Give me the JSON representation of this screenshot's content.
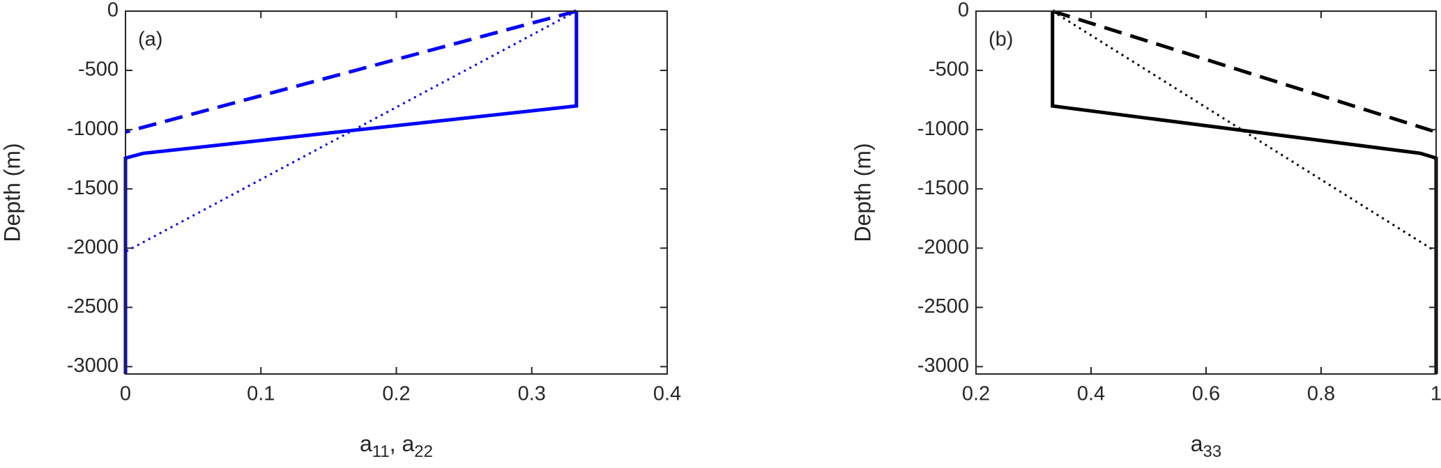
{
  "chart_data": [
    {
      "type": "line",
      "panel_label": "(a)",
      "ylabel": "Depth (m)",
      "xlabel": [
        {
          "text": "a"
        },
        {
          "text": "11",
          "sub": true
        },
        {
          "text": ", a"
        },
        {
          "text": "22",
          "sub": true
        }
      ],
      "xlim": [
        0,
        0.4
      ],
      "xticks": [
        0,
        0.1,
        0.2,
        0.3,
        0.4
      ],
      "ylim": [
        -3062,
        0
      ],
      "yticks": [
        -3000,
        -2500,
        -2000,
        -1500,
        -1000,
        -500,
        0
      ],
      "series": [
        {
          "color": "#0000ff",
          "linestyle": "solid",
          "x": [
            0.333,
            0.333,
            0.013,
            0,
            0
          ],
          "values": [
            0,
            -800,
            -1200,
            -1240,
            -3062
          ]
        },
        {
          "color": "#0000ff",
          "linestyle": "dashed",
          "x": [
            0.333,
            0
          ],
          "values": [
            0,
            -1020
          ]
        },
        {
          "color": "#0000ff",
          "linestyle": "dotted",
          "x": [
            0.333,
            0
          ],
          "values": [
            0,
            -2030
          ]
        }
      ]
    },
    {
      "type": "line",
      "panel_label": "(b)",
      "ylabel": "Depth (m)",
      "xlabel": [
        {
          "text": "a"
        },
        {
          "text": "33",
          "sub": true
        }
      ],
      "xlim": [
        0.2,
        1
      ],
      "xticks": [
        0.2,
        0.4,
        0.6,
        0.8,
        1
      ],
      "ylim": [
        -3062,
        0
      ],
      "yticks": [
        -3000,
        -2500,
        -2000,
        -1500,
        -1000,
        -500,
        0
      ],
      "series": [
        {
          "color": "#000000",
          "linestyle": "solid",
          "x": [
            0.333,
            0.333,
            0.973,
            1,
            1
          ],
          "values": [
            0,
            -800,
            -1200,
            -1240,
            -3062
          ]
        },
        {
          "color": "#000000",
          "linestyle": "dashed",
          "x": [
            0.333,
            1
          ],
          "values": [
            0,
            -1020
          ]
        },
        {
          "color": "#000000",
          "linestyle": "dotted",
          "x": [
            0.333,
            1
          ],
          "values": [
            0,
            -2030
          ]
        }
      ]
    }
  ]
}
